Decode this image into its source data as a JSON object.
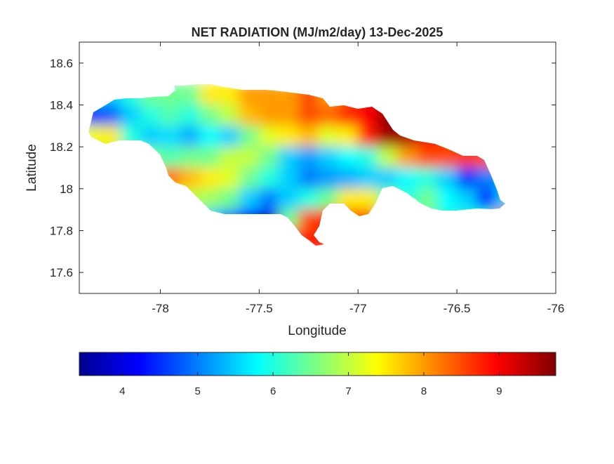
{
  "chart_data": {
    "type": "heatmap",
    "title": "NET RADIATION (MJ/m2/day) 13-Dec-2025",
    "xlabel": "Longitude",
    "ylabel": "Latitude",
    "xlim": [
      -78.41,
      -76
    ],
    "ylim": [
      17.5,
      18.7
    ],
    "xticks": [
      -78,
      -77.5,
      -77,
      -76.5,
      -76
    ],
    "xtick_labels": [
      "-78",
      "-77.5",
      "-77",
      "-76.5",
      "-76"
    ],
    "yticks": [
      17.6,
      17.8,
      18,
      18.2,
      18.4,
      18.6
    ],
    "ytick_labels": [
      "17.6",
      "17.8",
      "18",
      "18.2",
      "18.4",
      "18.6"
    ],
    "grid": false,
    "colormap": "jet",
    "clim": [
      3.43,
      9.75
    ],
    "colorbar": {
      "location": "bottom",
      "ticks": [
        4,
        5,
        6,
        7,
        8,
        9
      ],
      "tick_labels": [
        "4",
        "5",
        "6",
        "7",
        "8",
        "9"
      ]
    },
    "lon": [
      -78.35,
      -78.25,
      -78.15,
      -78.05,
      -77.95,
      -77.85,
      -77.75,
      -77.65,
      -77.55,
      -77.45,
      -77.35,
      -77.25,
      -77.15,
      -77.05,
      -76.95,
      -76.85,
      -76.75,
      -76.65,
      -76.55,
      -76.45,
      -76.35,
      -76.25
    ],
    "lat": [
      18.45,
      18.35,
      18.25,
      18.15,
      18.05,
      17.95,
      17.85,
      17.75
    ],
    "values": [
      [
        5.5,
        5.5,
        6,
        6.5,
        6.5,
        6.5,
        7.5,
        7.5,
        8,
        8,
        8,
        8.5,
        8,
        8.5,
        9,
        9,
        9,
        9,
        9,
        9,
        9,
        9
      ],
      [
        4.5,
        4.8,
        5.5,
        6,
        6.3,
        6,
        6.5,
        7,
        7.8,
        8,
        8,
        8.5,
        8.3,
        8.7,
        9,
        9.6,
        9.4,
        9,
        9,
        9,
        9,
        9
      ],
      [
        7.3,
        7.5,
        6,
        5.5,
        5.6,
        5.3,
        5.8,
        5.5,
        6.5,
        7.2,
        7.5,
        7.8,
        7.2,
        7.5,
        8.8,
        9.6,
        9.5,
        9,
        8.8,
        8.6,
        8.5,
        8.5
      ],
      [
        7,
        7,
        6.5,
        6.5,
        6.3,
        6.5,
        6.5,
        7,
        7,
        6.5,
        5.5,
        5.2,
        5.5,
        5.8,
        6,
        7,
        8,
        8.5,
        8.5,
        8.6,
        8.5,
        8
      ],
      [
        7,
        7,
        7,
        7.5,
        8.3,
        7.8,
        7.5,
        7.2,
        6.5,
        6,
        5.5,
        5,
        5.2,
        5.3,
        5.5,
        5.5,
        5.8,
        6,
        5.5,
        4.5,
        5,
        5.3
      ],
      [
        7,
        7,
        7,
        7,
        7.5,
        7,
        6.8,
        6.5,
        5.5,
        5,
        5.5,
        6,
        6.5,
        7.5,
        7.5,
        6.5,
        6,
        6.5,
        5.8,
        5.5,
        4.5,
        5.5
      ],
      [
        6.5,
        6.5,
        6.5,
        6.5,
        6.5,
        6,
        5.5,
        5,
        4.2,
        4,
        6.5,
        8.5,
        8.8,
        8.5,
        8.5,
        7,
        6.5,
        6.5,
        6,
        6,
        6,
        8.5
      ],
      [
        8.8,
        8.8,
        8.8,
        8.8,
        8.8,
        8.8,
        8.8,
        8.8,
        8.8,
        8.8,
        8.8,
        8.8,
        8.8,
        8.8,
        8.8,
        8.8,
        8.8,
        8.8,
        8.8,
        8.8,
        8.8,
        8.8
      ]
    ]
  }
}
